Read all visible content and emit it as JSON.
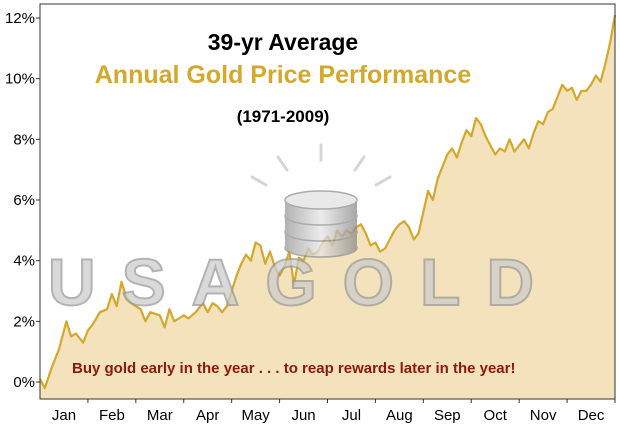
{
  "chart_data": {
    "type": "area",
    "title": "39-yr Average",
    "subtitle": "Annual Gold Price Performance",
    "period": "(1971-2009)",
    "annotation": "Buy gold early in the year . . . to reap rewards later in the year!",
    "watermark": "USAGOLD",
    "xlabel": "",
    "ylabel": "",
    "categories": [
      "Jan",
      "Feb",
      "Mar",
      "Apr",
      "May",
      "Jun",
      "Jul",
      "Aug",
      "Sep",
      "Oct",
      "Nov",
      "Dec"
    ],
    "y_ticks": [
      "0%",
      "2%",
      "4%",
      "6%",
      "8%",
      "10%",
      "12%"
    ],
    "ylim": [
      0,
      12
    ],
    "xlim": [
      0,
      12
    ],
    "grid": false,
    "colors": {
      "line": "#d4a82c",
      "fill": "#f3e2bc",
      "subtitle": "#d4a82c",
      "annotation": "#8b1a0a"
    },
    "series": [
      {
        "x": [
          0.0,
          0.1,
          0.25,
          0.4,
          0.55,
          0.65,
          0.75,
          0.9,
          1.0,
          1.1,
          1.25,
          1.4,
          1.5,
          1.6,
          1.7,
          1.8,
          1.9,
          2.0,
          2.1,
          2.2,
          2.3,
          2.5,
          2.6,
          2.7,
          2.8,
          3.0,
          3.1,
          3.25,
          3.4,
          3.5,
          3.6,
          3.7,
          3.8,
          3.9,
          4.0,
          4.1,
          4.2,
          4.3,
          4.4,
          4.5,
          4.6,
          4.7,
          4.8,
          4.9,
          5.0,
          5.1,
          5.2,
          5.3,
          5.4,
          5.5,
          5.6,
          5.7,
          5.8,
          5.9,
          6.0,
          6.1,
          6.2,
          6.3,
          6.4,
          6.5,
          6.6,
          6.7,
          6.8,
          6.9,
          7.0,
          7.1,
          7.2,
          7.3,
          7.4,
          7.5,
          7.6,
          7.7,
          7.8,
          7.9,
          8.0,
          8.1,
          8.2,
          8.3,
          8.4,
          8.5,
          8.6,
          8.7,
          8.8,
          8.9,
          9.0,
          9.1,
          9.2,
          9.3,
          9.4,
          9.5,
          9.6,
          9.7,
          9.8,
          9.9,
          10.0,
          10.1,
          10.2,
          10.3,
          10.4,
          10.5,
          10.6,
          10.7,
          10.8,
          10.9,
          11.0,
          11.1,
          11.2,
          11.3,
          11.4,
          11.5,
          11.6,
          11.7,
          11.8,
          11.9,
          12.0
        ],
        "values": [
          0.1,
          -0.2,
          0.5,
          1.1,
          2.0,
          1.5,
          1.6,
          1.3,
          1.7,
          1.9,
          2.3,
          2.4,
          2.9,
          2.5,
          3.3,
          2.8,
          2.6,
          2.5,
          2.4,
          2.0,
          2.3,
          2.2,
          1.8,
          2.4,
          2.0,
          2.2,
          2.1,
          2.3,
          2.6,
          2.3,
          2.6,
          2.5,
          2.3,
          2.5,
          3.0,
          3.5,
          3.9,
          4.2,
          4.0,
          4.6,
          4.5,
          3.9,
          4.3,
          3.8,
          3.5,
          3.8,
          4.3,
          3.2,
          4.1,
          4.0,
          4.4,
          4.2,
          4.3,
          4.6,
          4.8,
          4.5,
          5.0,
          4.8,
          5.0,
          4.9,
          5.1,
          5.2,
          4.9,
          4.5,
          4.6,
          4.3,
          4.4,
          4.7,
          5.0,
          5.2,
          5.3,
          5.1,
          4.7,
          4.9,
          5.6,
          6.3,
          6.0,
          6.7,
          7.1,
          7.5,
          7.7,
          7.4,
          7.9,
          8.3,
          8.1,
          8.7,
          8.5,
          8.1,
          7.8,
          7.5,
          7.7,
          7.6,
          8.0,
          7.6,
          7.8,
          8.0,
          7.7,
          8.2,
          8.6,
          8.5,
          8.9,
          9.0,
          9.4,
          9.8,
          9.6,
          9.7,
          9.3,
          9.6,
          9.6,
          9.8,
          10.1,
          9.9,
          10.5,
          11.2,
          12.1
        ]
      }
    ]
  }
}
